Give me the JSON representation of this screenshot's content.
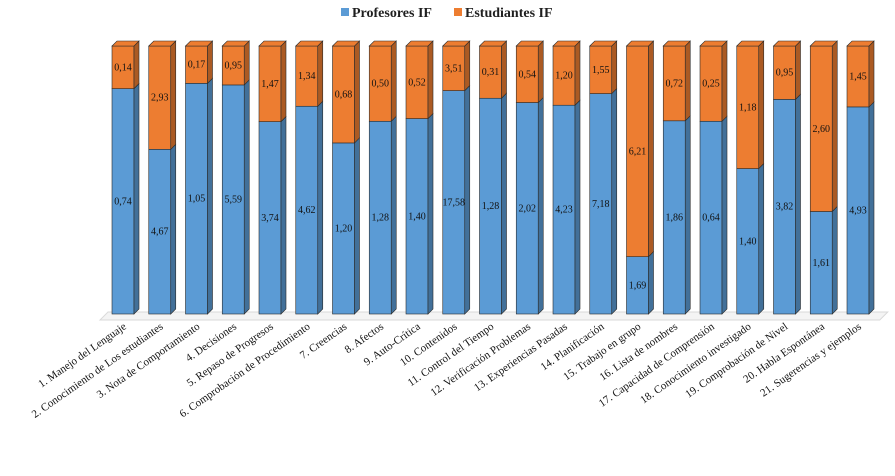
{
  "chart_data": {
    "type": "bar",
    "stacked": true,
    "percent_stacked": true,
    "three_d": true,
    "categories": [
      "1. Manejo del Lenguaje",
      "2. Conocimiento de Los estudiantes",
      "3. Nota de Comportamiento",
      "4. Decisiones",
      "5. Repaso de Progresos",
      "6. Comprobación de Procedimiento",
      "7. Creencias",
      "8. Afectos",
      "9. Auto-Crítica",
      "10. Contenidos",
      "11. Control del Tiempo",
      "12. Verificación Problemas",
      "13. Experiencias Pasadas",
      "14. Planificación",
      "15. Trabajo en grupo",
      "16. Lista de nombres",
      "17. Capacidad de Comprensión",
      "18. Conocimiento investigado",
      "19. Comprobación de Nivel",
      "20. Habla Espontánea",
      "21. Sugerencias y ejemplos"
    ],
    "series": [
      {
        "name": "Profesores IF",
        "color": "#5B9BD5",
        "values": [
          0.74,
          4.67,
          1.05,
          5.59,
          3.74,
          4.62,
          1.2,
          1.28,
          1.4,
          17.58,
          1.28,
          2.02,
          4.23,
          7.18,
          1.69,
          1.86,
          0.64,
          1.4,
          3.82,
          1.61,
          4.93
        ],
        "labels": [
          "0,74",
          "4,67",
          "1,05",
          "5,59",
          "3,74",
          "4,62",
          "1,20",
          "1,28",
          "1,40",
          "17,58",
          "1,28",
          "2,02",
          "4,23",
          "7,18",
          "1,69",
          "1,86",
          "0,64",
          "1,40",
          "3,82",
          "1,61",
          "4,93"
        ]
      },
      {
        "name": "Estudiantes IF",
        "color": "#ED7D31",
        "values": [
          0.14,
          2.93,
          0.17,
          0.95,
          1.47,
          1.34,
          0.68,
          0.5,
          0.52,
          3.51,
          0.31,
          0.54,
          1.2,
          1.55,
          6.21,
          0.72,
          0.25,
          1.18,
          0.95,
          2.6,
          1.45
        ],
        "labels": [
          "0,14",
          "2,93",
          "0,17",
          "0,95",
          "1,47",
          "1,34",
          "0,68",
          "0,50",
          "0,52",
          "3,51",
          "0,31",
          "0,54",
          "1,20",
          "1,55",
          "6,21",
          "0,72",
          "0,25",
          "1,18",
          "0,95",
          "2,60",
          "1,45"
        ]
      }
    ],
    "legend_position": "top-center",
    "grid": false
  }
}
